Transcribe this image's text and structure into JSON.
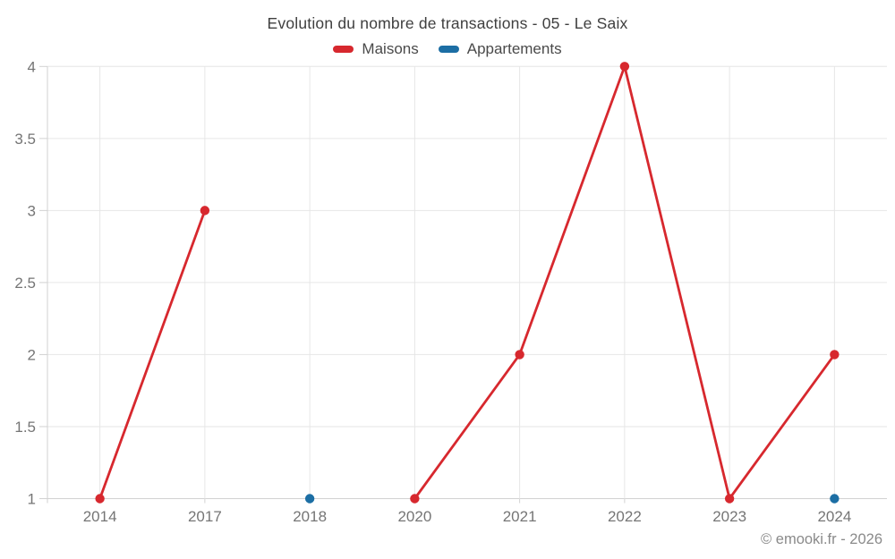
{
  "chart_data": {
    "type": "line",
    "title": "Evolution du nombre de transactions - 05 - Le Saix",
    "x_categories": [
      "2014",
      "2017",
      "2018",
      "2020",
      "2021",
      "2022",
      "2023",
      "2024"
    ],
    "series": [
      {
        "name": "Maisons",
        "color": "#d7282e",
        "values": [
          1,
          3,
          null,
          1,
          2,
          4,
          1,
          2
        ]
      },
      {
        "name": "Appartements",
        "color": "#1c6ea4",
        "values": [
          null,
          null,
          1,
          null,
          null,
          null,
          null,
          1
        ]
      }
    ],
    "y_ticks": [
      1,
      1.5,
      2,
      2.5,
      3,
      3.5,
      4
    ],
    "ylim": [
      1,
      4
    ],
    "grid": true,
    "legend_position": "top",
    "style": {
      "grid_color": "#e6e6e6",
      "axis_color": "#d2d2d2",
      "tick_label_color": "#757575"
    }
  },
  "footer": {
    "credit": "© emooki.fr - 2026"
  }
}
